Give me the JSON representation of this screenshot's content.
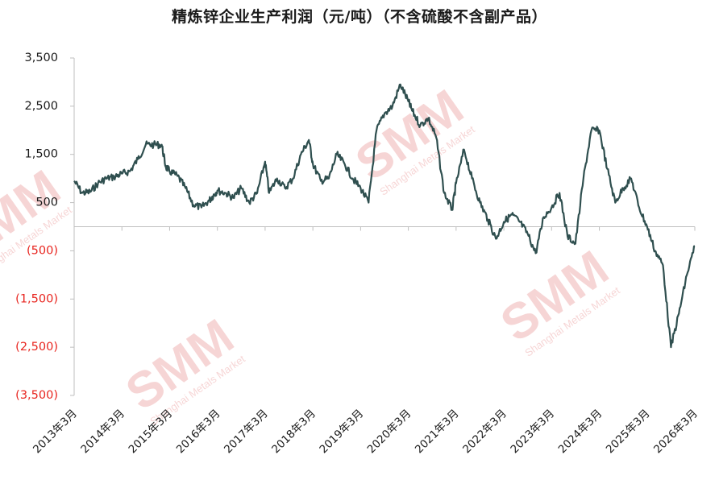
{
  "chart_data": {
    "type": "line",
    "title": "精炼锌企业生产利润（元/吨）（不含硫酸不含副产品）",
    "xlabel": "",
    "ylabel": "",
    "ylim": [
      -3500,
      3500
    ],
    "yticks": [
      3500,
      2500,
      1500,
      500,
      -500,
      -1500,
      -2500,
      -3500
    ],
    "ytick_labels": [
      "3,500",
      "2,500",
      "1,500",
      "500",
      "(500)",
      "(1,500)",
      "(2,500)",
      "(3,500)"
    ],
    "negative_label_color": "#e8251f",
    "positive_label_color": "#1a1a1a",
    "x_tick_labels": [
      "2013年3月",
      "2014年3月",
      "2015年3月",
      "2016年3月",
      "2017年3月",
      "2018年3月",
      "2019年3月",
      "2020年3月",
      "2021年3月",
      "2022年3月",
      "2023年3月",
      "2024年3月",
      "2025年3月",
      "2026年3月"
    ],
    "line_color": "#2f4f4f",
    "grid": false,
    "legend": "none",
    "series": [
      {
        "x": [
          "2013-03",
          "2013-05",
          "2013-07",
          "2013-09",
          "2013-11",
          "2014-01",
          "2014-03",
          "2014-05",
          "2014-07",
          "2014-09",
          "2014-11",
          "2015-01",
          "2015-02",
          "2015-03",
          "2015-05",
          "2015-07",
          "2015-09",
          "2015-11",
          "2016-01",
          "2016-02",
          "2016-03",
          "2016-05",
          "2016-07",
          "2016-09",
          "2016-11",
          "2017-01",
          "2017-03",
          "2017-04",
          "2017-06",
          "2017-08",
          "2017-10",
          "2017-12",
          "2018-02",
          "2018-03",
          "2018-05",
          "2018-07",
          "2018-09",
          "2018-11",
          "2019-01",
          "2019-03",
          "2019-05",
          "2019-07",
          "2019-09",
          "2019-11",
          "2020-01",
          "2020-03",
          "2020-04",
          "2020-06",
          "2020-08",
          "2020-10",
          "2020-12",
          "2021-02",
          "2021-03",
          "2021-05",
          "2021-07",
          "2021-09",
          "2021-11",
          "2022-01",
          "2022-03",
          "2022-05",
          "2022-07",
          "2022-09",
          "2022-11",
          "2023-01",
          "2023-03",
          "2023-05",
          "2023-07",
          "2023-09",
          "2023-11",
          "2024-01",
          "2024-03",
          "2024-05",
          "2024-07",
          "2024-09",
          "2024-11",
          "2025-01",
          "2025-03",
          "2025-05",
          "2025-07",
          "2025-09",
          "2025-11",
          "2026-01",
          "2026-03"
        ],
        "y": [
          950,
          700,
          720,
          900,
          1000,
          1030,
          1100,
          1150,
          1400,
          1700,
          1700,
          1700,
          1250,
          1150,
          1050,
          800,
          450,
          400,
          550,
          650,
          750,
          700,
          600,
          800,
          500,
          700,
          1350,
          700,
          1000,
          800,
          1000,
          1500,
          1800,
          1300,
          950,
          1000,
          1500,
          1300,
          1000,
          800,
          500,
          2000,
          2350,
          2500,
          2950,
          2600,
          2400,
          2100,
          2250,
          1850,
          700,
          350,
          900,
          1600,
          1000,
          500,
          150,
          -250,
          100,
          250,
          100,
          -150,
          -550,
          200,
          400,
          700,
          -200,
          -350,
          1000,
          2000,
          2000,
          1200,
          500,
          800,
          1000,
          400,
          0,
          -500,
          -800,
          -2500,
          -1800,
          -1000,
          -400
        ]
      }
    ]
  },
  "watermark": {
    "logo": "SMM",
    "subtitle": "Shanghai Metals Market"
  }
}
